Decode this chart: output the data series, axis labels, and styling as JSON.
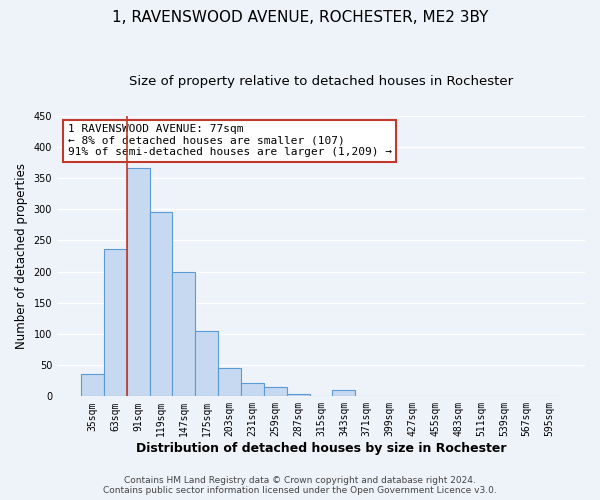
{
  "title": "1, RAVENSWOOD AVENUE, ROCHESTER, ME2 3BY",
  "subtitle": "Size of property relative to detached houses in Rochester",
  "xlabel": "Distribution of detached houses by size in Rochester",
  "ylabel": "Number of detached properties",
  "bar_labels": [
    "35sqm",
    "63sqm",
    "91sqm",
    "119sqm",
    "147sqm",
    "175sqm",
    "203sqm",
    "231sqm",
    "259sqm",
    "287sqm",
    "315sqm",
    "343sqm",
    "371sqm",
    "399sqm",
    "427sqm",
    "455sqm",
    "483sqm",
    "511sqm",
    "539sqm",
    "567sqm",
    "595sqm"
  ],
  "bar_values": [
    35,
    236,
    366,
    296,
    199,
    105,
    45,
    22,
    15,
    3,
    0,
    10,
    1,
    0,
    0,
    0,
    0,
    0,
    0,
    0,
    1
  ],
  "bar_color": "#c6d9f0",
  "bar_edge_color": "#5b9bd5",
  "property_line_color": "#c0392b",
  "property_line_x": 1.5,
  "annotation_line1": "1 RAVENSWOOD AVENUE: 77sqm",
  "annotation_line2": "← 8% of detached houses are smaller (107)",
  "annotation_line3": "91% of semi-detached houses are larger (1,209) →",
  "annotation_box_edge_color": "#c0392b",
  "annotation_box_face_color": "white",
  "ylim": [
    0,
    450
  ],
  "yticks": [
    0,
    50,
    100,
    150,
    200,
    250,
    300,
    350,
    400,
    450
  ],
  "footer_line1": "Contains HM Land Registry data © Crown copyright and database right 2024.",
  "footer_line2": "Contains public sector information licensed under the Open Government Licence v3.0.",
  "background_color": "#eef2f9",
  "grid_color": "white",
  "title_fontsize": 11,
  "subtitle_fontsize": 9.5,
  "xlabel_fontsize": 9,
  "ylabel_fontsize": 8.5,
  "tick_fontsize": 7,
  "annotation_fontsize": 8,
  "footer_fontsize": 6.5
}
